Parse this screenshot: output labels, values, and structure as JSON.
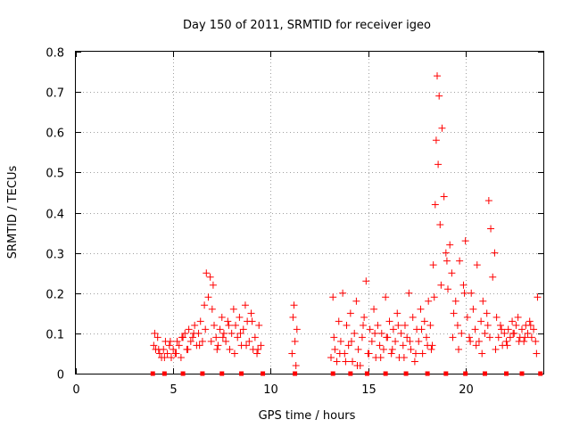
{
  "chart_data": {
    "type": "scatter",
    "title": "Day 150 of 2011, SRMTID for receiver igeo",
    "xlabel": "GPS time / hours",
    "ylabel": "SRMTID / TECUs",
    "xlim": [
      0,
      24
    ],
    "ylim": [
      0,
      0.8
    ],
    "xticks": [
      "0",
      "5",
      "10",
      "15",
      "20"
    ],
    "xtick_values": [
      0,
      5,
      10,
      15,
      20
    ],
    "yticks": [
      "0",
      "0.1",
      "0.2",
      "0.3",
      "0.4",
      "0.5",
      "0.6",
      "0.7",
      "0.8"
    ],
    "ytick_values": [
      0,
      0.1,
      0.2,
      0.3,
      0.4,
      0.5,
      0.6,
      0.7,
      0.8
    ],
    "grid": true,
    "marker": "+",
    "marker_color": "#ff0000",
    "series": [
      {
        "name": "SRMTID",
        "x": [
          4.0,
          4.1,
          4.2,
          4.3,
          4.4,
          4.5,
          4.6,
          4.7,
          4.8,
          4.9,
          5.0,
          5.1,
          5.2,
          5.3,
          5.4,
          5.5,
          5.6,
          5.7,
          5.8,
          5.9,
          6.0,
          6.1,
          6.2,
          6.3,
          6.4,
          6.5,
          6.6,
          6.7,
          6.8,
          6.9,
          7.0,
          7.05,
          7.1,
          7.2,
          7.3,
          7.4,
          7.5,
          7.6,
          7.7,
          7.8,
          7.9,
          8.0,
          8.1,
          8.2,
          8.3,
          8.4,
          8.5,
          8.6,
          8.7,
          8.8,
          8.9,
          9.0,
          9.1,
          9.2,
          9.3,
          9.4,
          9.5,
          11.1,
          11.15,
          11.2,
          11.25,
          11.3,
          11.35,
          13.1,
          13.2,
          13.3,
          13.4,
          13.5,
          13.6,
          13.7,
          13.8,
          13.9,
          14.0,
          14.1,
          14.2,
          14.3,
          14.4,
          14.5,
          14.6,
          14.7,
          14.8,
          14.9,
          15.0,
          15.1,
          15.2,
          15.3,
          15.4,
          15.5,
          15.6,
          15.7,
          15.8,
          15.9,
          16.0,
          16.1,
          16.2,
          16.3,
          16.4,
          16.5,
          16.6,
          16.7,
          16.8,
          16.9,
          17.0,
          17.1,
          17.2,
          17.3,
          17.4,
          17.5,
          17.6,
          17.7,
          17.8,
          17.9,
          18.0,
          18.1,
          18.2,
          18.3,
          18.35,
          18.4,
          18.45,
          18.5,
          18.55,
          18.6,
          18.65,
          18.7,
          18.8,
          18.9,
          19.0,
          19.1,
          19.2,
          19.3,
          19.4,
          19.5,
          19.6,
          19.7,
          19.8,
          19.9,
          20.0,
          20.1,
          20.2,
          20.3,
          20.4,
          20.5,
          20.6,
          20.7,
          20.8,
          20.9,
          21.0,
          21.1,
          21.15,
          21.2,
          21.3,
          21.4,
          21.5,
          21.6,
          21.7,
          21.8,
          21.9,
          22.0,
          22.1,
          22.2,
          22.3,
          22.4,
          22.5,
          22.6,
          22.7,
          22.8,
          22.9,
          23.0,
          23.1,
          23.2,
          23.3,
          23.4,
          23.5,
          23.6,
          23.7,
          4.05,
          4.25,
          4.55,
          4.85,
          5.15,
          5.45,
          5.75,
          6.05,
          6.35,
          6.65,
          6.95,
          7.25,
          7.55,
          7.85,
          8.15,
          8.45,
          8.75,
          9.05,
          9.35,
          13.25,
          13.55,
          13.85,
          14.15,
          14.45,
          14.75,
          15.05,
          15.35,
          15.65,
          15.95,
          16.25,
          16.55,
          16.85,
          17.15,
          17.45,
          17.75,
          18.05,
          18.25,
          18.75,
          19.05,
          19.35,
          19.65,
          19.95,
          20.25,
          20.55,
          20.85,
          21.25,
          21.55,
          21.85,
          22.15,
          22.45,
          22.75,
          23.05,
          23.35,
          23.65
        ],
        "y": [
          0.07,
          0.06,
          0.09,
          0.05,
          0.04,
          0.06,
          0.08,
          0.05,
          0.07,
          0.04,
          0.06,
          0.05,
          0.08,
          0.07,
          0.04,
          0.09,
          0.1,
          0.06,
          0.11,
          0.08,
          0.09,
          0.12,
          0.07,
          0.1,
          0.13,
          0.08,
          0.17,
          0.25,
          0.19,
          0.24,
          0.16,
          0.22,
          0.12,
          0.09,
          0.07,
          0.11,
          0.14,
          0.1,
          0.08,
          0.13,
          0.06,
          0.1,
          0.16,
          0.12,
          0.09,
          0.14,
          0.07,
          0.11,
          0.17,
          0.13,
          0.08,
          0.15,
          0.06,
          0.09,
          0.05,
          0.12,
          0.07,
          0.05,
          0.14,
          0.17,
          0.08,
          0.02,
          0.11,
          0.04,
          0.19,
          0.06,
          0.03,
          0.13,
          0.08,
          0.2,
          0.05,
          0.12,
          0.07,
          0.15,
          0.03,
          0.1,
          0.18,
          0.06,
          0.02,
          0.09,
          0.14,
          0.23,
          0.05,
          0.11,
          0.08,
          0.16,
          0.04,
          0.12,
          0.07,
          0.1,
          0.06,
          0.19,
          0.09,
          0.13,
          0.05,
          0.11,
          0.08,
          0.15,
          0.04,
          0.1,
          0.07,
          0.12,
          0.09,
          0.2,
          0.06,
          0.14,
          0.03,
          0.11,
          0.08,
          0.16,
          0.05,
          0.13,
          0.09,
          0.18,
          0.12,
          0.07,
          0.27,
          0.19,
          0.42,
          0.58,
          0.74,
          0.52,
          0.69,
          0.37,
          0.61,
          0.44,
          0.3,
          0.21,
          0.32,
          0.25,
          0.15,
          0.18,
          0.12,
          0.28,
          0.1,
          0.22,
          0.33,
          0.14,
          0.09,
          0.2,
          0.16,
          0.11,
          0.27,
          0.08,
          0.13,
          0.18,
          0.1,
          0.15,
          0.12,
          0.43,
          0.36,
          0.24,
          0.3,
          0.14,
          0.09,
          0.12,
          0.07,
          0.1,
          0.08,
          0.11,
          0.09,
          0.13,
          0.1,
          0.12,
          0.14,
          0.09,
          0.11,
          0.08,
          0.12,
          0.1,
          0.13,
          0.09,
          0.11,
          0.08,
          0.19,
          0.1,
          0.06,
          0.04,
          0.08,
          0.05,
          0.09,
          0.06,
          0.1,
          0.07,
          0.11,
          0.08,
          0.06,
          0.09,
          0.12,
          0.05,
          0.1,
          0.07,
          0.13,
          0.06,
          0.09,
          0.05,
          0.03,
          0.08,
          0.02,
          0.12,
          0.05,
          0.1,
          0.04,
          0.09,
          0.06,
          0.12,
          0.04,
          0.08,
          0.05,
          0.11,
          0.07,
          0.06,
          0.22,
          0.28,
          0.09,
          0.06,
          0.2,
          0.08,
          0.07,
          0.05,
          0.09,
          0.06,
          0.11,
          0.07,
          0.1,
          0.08,
          0.09,
          0.12,
          0.05
        ],
        "baseline_x": [
          3.95,
          4.55,
          5.5,
          6.5,
          7.5,
          8.5,
          9.6,
          11.25,
          13.2,
          14.1,
          14.95,
          15.9,
          16.95,
          18.05,
          19.0,
          20.0,
          21.0,
          22.1,
          22.9,
          23.85
        ]
      }
    ]
  }
}
